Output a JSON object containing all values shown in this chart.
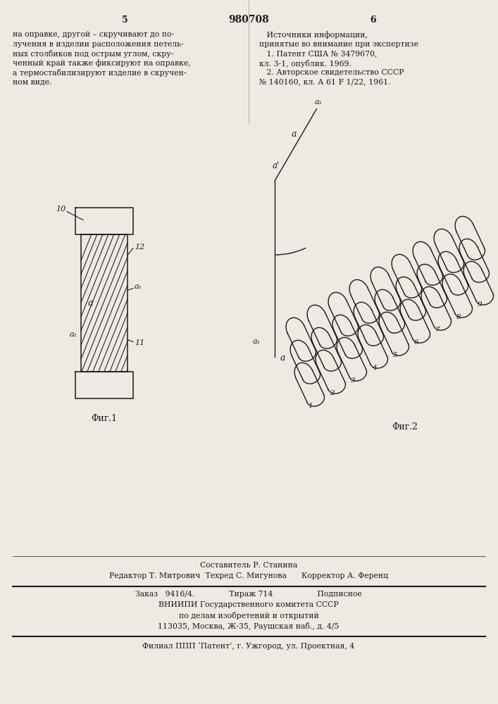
{
  "patent_number": "980708",
  "col_left": "5",
  "col_right": "6",
  "bg_color": "#ede9e3",
  "text_color": "#1a1a1a",
  "left_text_lines": [
    "на оправке, другой – скручивают до по-",
    "лучения в изделии расположения петель-",
    "ных столбиков под острым углом, скру-",
    "ченный край также фиксируют на оправке,",
    "а термостабилизируют изделие в скручен-",
    "ном виде."
  ],
  "right_text_lines": [
    "   Источники информации,",
    "принятые во внимание при экспертизе",
    "   1. Патент США № 3479670,",
    "кл. 3-1, опублик. 1969.",
    "   2. Авторское свидетельство СССР",
    "№ 140160, кл. А 61 F 1/22, 1961."
  ],
  "bottom_composer": "Составитель Р. Станина",
  "bottom_editor": "Редактор Т. Митрович  Техред С. Мигунова      Корректор А. Ференц",
  "bottom_order": "Заказ   9416/4.              Тираж 714                  Подписное",
  "bottom_vniip": "ВНИИПИ Государственного комитета СССР",
  "bottom_inventions": "по делам изобретений и открытий",
  "bottom_address": "113035, Москва, Ж-35, Раушская наб., д. 4/5",
  "bottom_filial": "Филиал ППП ‘Патент’, г. Ужгород, ул. Проектная, 4",
  "fig1_label": "Φиг.1",
  "fig2_label": "Φиг.2"
}
